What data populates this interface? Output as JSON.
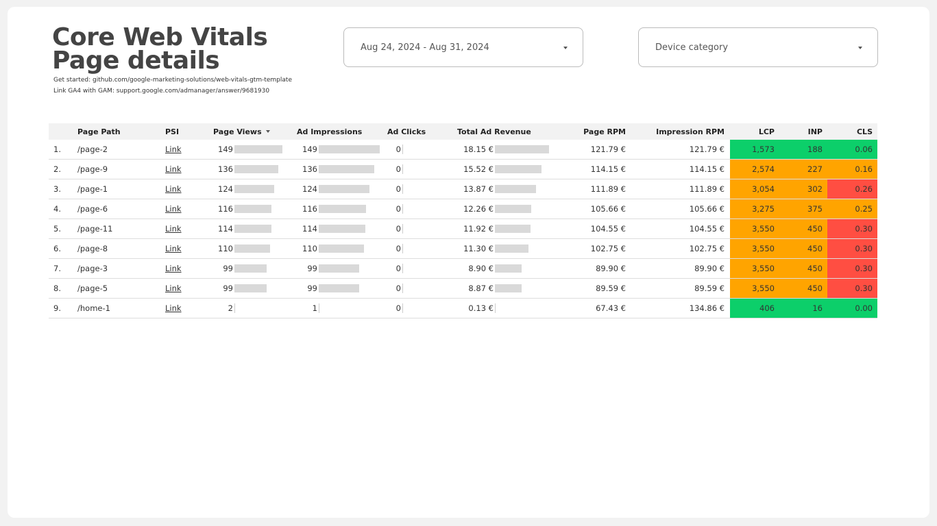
{
  "header": {
    "title_line1": "Core Web Vitals",
    "title_line2": "Page details",
    "get_started": "Get started: github.com/google-marketing-solutions/web-vitals-gtm-template",
    "link_gam": "Link GA4 with GAM: support.google.com/admanager/answer/9681930"
  },
  "filters": {
    "date_range": "Aug 24, 2024 - Aug 31, 2024",
    "device_category": "Device category"
  },
  "colors": {
    "good": "#0ccf6a",
    "needs_improvement": "#ffa400",
    "poor": "#ff4e42",
    "bar": "#d9d9d9"
  },
  "table": {
    "columns": [
      "Page Path",
      "PSI",
      "Page Views",
      "Ad Impressions",
      "Ad Clicks",
      "Total Ad Revenue",
      "Page RPM",
      "Impression RPM",
      "LCP",
      "INP",
      "CLS"
    ],
    "sort": {
      "column": "Page Views",
      "direction": "descending"
    },
    "rows": [
      {
        "idx": "1.",
        "path": "/page-2",
        "psi": "Link",
        "views": 149,
        "impressions": 149,
        "clicks": 0,
        "revenue": "18.15 €",
        "revenue_val": 18.15,
        "page_rpm": "121.79 €",
        "imp_rpm": "121.79 €",
        "lcp": "1,573",
        "inp": "188",
        "cls": "0.06",
        "lcp_s": "good",
        "inp_s": "good",
        "cls_s": "good"
      },
      {
        "idx": "2.",
        "path": "/page-9",
        "psi": "Link",
        "views": 136,
        "impressions": 136,
        "clicks": 0,
        "revenue": "15.52 €",
        "revenue_val": 15.52,
        "page_rpm": "114.15 €",
        "imp_rpm": "114.15 €",
        "lcp": "2,574",
        "inp": "227",
        "cls": "0.16",
        "lcp_s": "needs_improvement",
        "inp_s": "needs_improvement",
        "cls_s": "needs_improvement"
      },
      {
        "idx": "3.",
        "path": "/page-1",
        "psi": "Link",
        "views": 124,
        "impressions": 124,
        "clicks": 0,
        "revenue": "13.87 €",
        "revenue_val": 13.87,
        "page_rpm": "111.89 €",
        "imp_rpm": "111.89 €",
        "lcp": "3,054",
        "inp": "302",
        "cls": "0.26",
        "lcp_s": "needs_improvement",
        "inp_s": "needs_improvement",
        "cls_s": "poor"
      },
      {
        "idx": "4.",
        "path": "/page-6",
        "psi": "Link",
        "views": 116,
        "impressions": 116,
        "clicks": 0,
        "revenue": "12.26 €",
        "revenue_val": 12.26,
        "page_rpm": "105.66 €",
        "imp_rpm": "105.66 €",
        "lcp": "3,275",
        "inp": "375",
        "cls": "0.25",
        "lcp_s": "needs_improvement",
        "inp_s": "needs_improvement",
        "cls_s": "needs_improvement"
      },
      {
        "idx": "5.",
        "path": "/page-11",
        "psi": "Link",
        "views": 114,
        "impressions": 114,
        "clicks": 0,
        "revenue": "11.92 €",
        "revenue_val": 11.92,
        "page_rpm": "104.55 €",
        "imp_rpm": "104.55 €",
        "lcp": "3,550",
        "inp": "450",
        "cls": "0.30",
        "lcp_s": "needs_improvement",
        "inp_s": "needs_improvement",
        "cls_s": "poor"
      },
      {
        "idx": "6.",
        "path": "/page-8",
        "psi": "Link",
        "views": 110,
        "impressions": 110,
        "clicks": 0,
        "revenue": "11.30 €",
        "revenue_val": 11.3,
        "page_rpm": "102.75 €",
        "imp_rpm": "102.75 €",
        "lcp": "3,550",
        "inp": "450",
        "cls": "0.30",
        "lcp_s": "needs_improvement",
        "inp_s": "needs_improvement",
        "cls_s": "poor"
      },
      {
        "idx": "7.",
        "path": "/page-3",
        "psi": "Link",
        "views": 99,
        "impressions": 99,
        "clicks": 0,
        "revenue": "8.90 €",
        "revenue_val": 8.9,
        "page_rpm": "89.90 €",
        "imp_rpm": "89.90 €",
        "lcp": "3,550",
        "inp": "450",
        "cls": "0.30",
        "lcp_s": "needs_improvement",
        "inp_s": "needs_improvement",
        "cls_s": "poor"
      },
      {
        "idx": "8.",
        "path": "/page-5",
        "psi": "Link",
        "views": 99,
        "impressions": 99,
        "clicks": 0,
        "revenue": "8.87 €",
        "revenue_val": 8.87,
        "page_rpm": "89.59 €",
        "imp_rpm": "89.59 €",
        "lcp": "3,550",
        "inp": "450",
        "cls": "0.30",
        "lcp_s": "needs_improvement",
        "inp_s": "needs_improvement",
        "cls_s": "poor"
      },
      {
        "idx": "9.",
        "path": "/home-1",
        "psi": "Link",
        "views": 2,
        "impressions": 1,
        "clicks": 0,
        "revenue": "0.13 €",
        "revenue_val": 0.13,
        "page_rpm": "67.43 €",
        "imp_rpm": "134.86 €",
        "lcp": "406",
        "inp": "16",
        "cls": "0.00",
        "lcp_s": "good",
        "inp_s": "good",
        "cls_s": "good"
      }
    ]
  }
}
